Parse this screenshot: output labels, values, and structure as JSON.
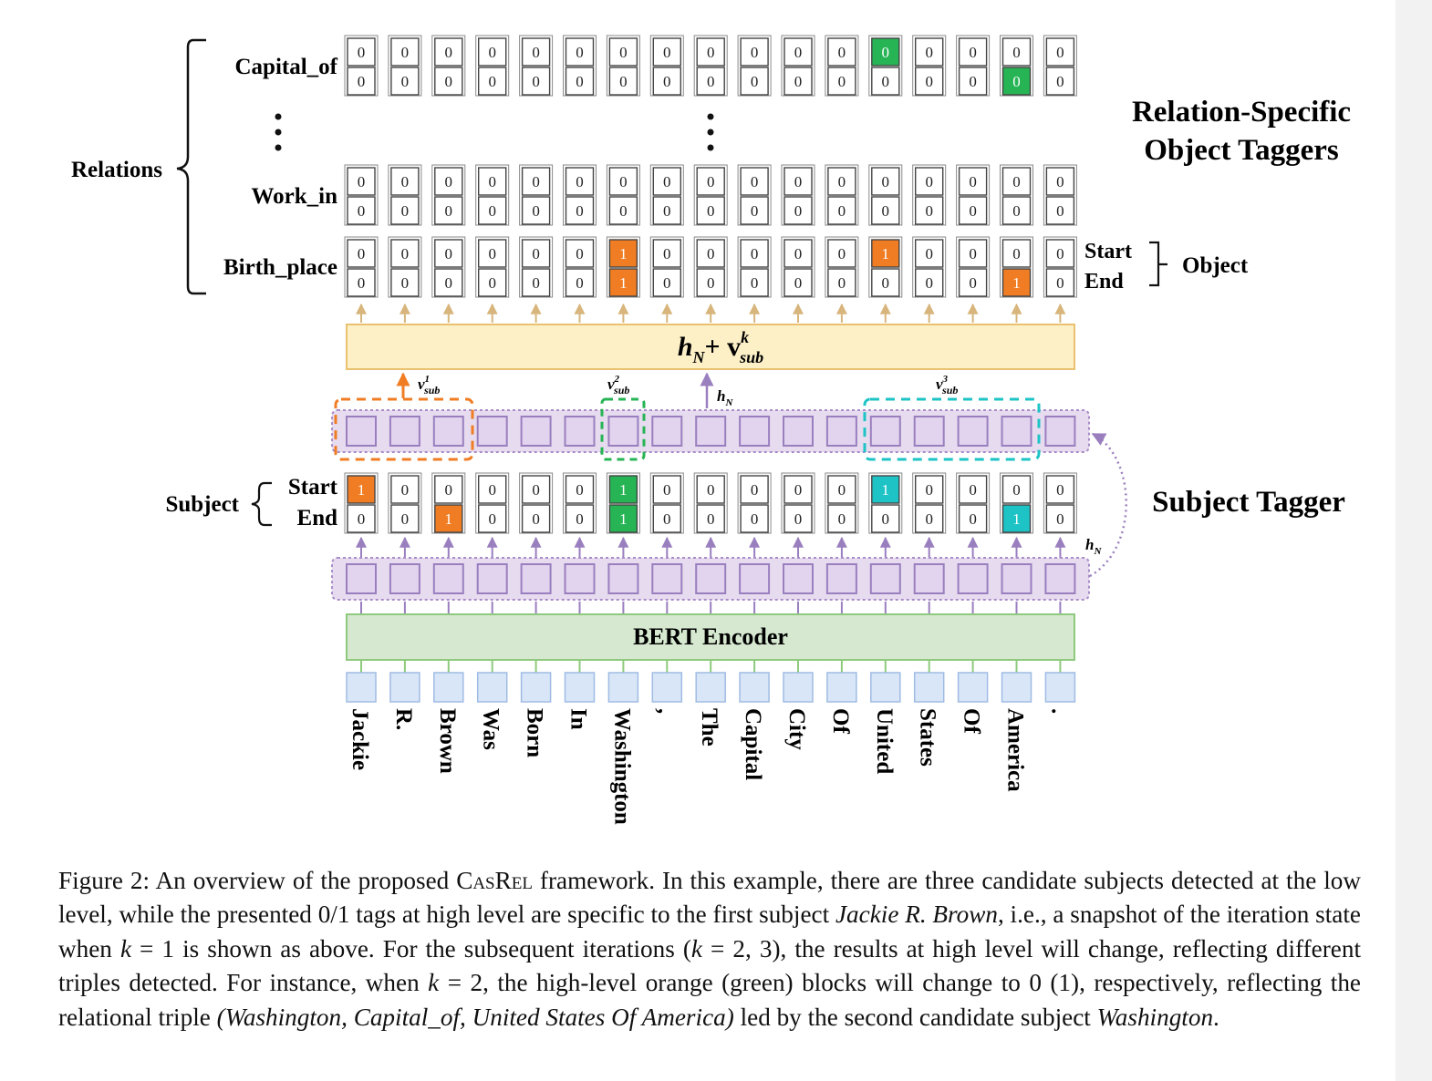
{
  "relations": {
    "group_label": "Relations",
    "rows": [
      {
        "name": "Capital_of",
        "start": [
          0,
          0,
          0,
          0,
          0,
          0,
          0,
          0,
          0,
          0,
          0,
          0,
          0,
          0,
          0,
          0,
          0
        ],
        "end": [
          0,
          0,
          0,
          0,
          0,
          0,
          0,
          0,
          0,
          0,
          0,
          0,
          0,
          0,
          0,
          0,
          0
        ],
        "start_color": [
          null,
          null,
          null,
          null,
          null,
          null,
          null,
          null,
          null,
          null,
          null,
          null,
          "green",
          null,
          null,
          null,
          null
        ],
        "end_color": [
          null,
          null,
          null,
          null,
          null,
          null,
          null,
          null,
          null,
          null,
          null,
          null,
          null,
          null,
          null,
          "green",
          null
        ]
      },
      {
        "name": "Work_in",
        "start": [
          0,
          0,
          0,
          0,
          0,
          0,
          0,
          0,
          0,
          0,
          0,
          0,
          0,
          0,
          0,
          0,
          0
        ],
        "end": [
          0,
          0,
          0,
          0,
          0,
          0,
          0,
          0,
          0,
          0,
          0,
          0,
          0,
          0,
          0,
          0,
          0
        ],
        "start_color": [],
        "end_color": []
      },
      {
        "name": "Birth_place",
        "start": [
          0,
          0,
          0,
          0,
          0,
          0,
          1,
          0,
          0,
          0,
          0,
          0,
          1,
          0,
          0,
          0,
          0
        ],
        "end": [
          0,
          0,
          0,
          0,
          0,
          0,
          1,
          0,
          0,
          0,
          0,
          0,
          0,
          0,
          0,
          1,
          0
        ],
        "start_color": [
          null,
          null,
          null,
          null,
          null,
          null,
          "orange",
          null,
          null,
          null,
          null,
          null,
          "orange",
          null,
          null,
          null,
          null
        ],
        "end_color": [
          null,
          null,
          null,
          null,
          null,
          null,
          "orange",
          null,
          null,
          null,
          null,
          null,
          null,
          null,
          null,
          "orange",
          null
        ]
      }
    ],
    "object_start_label": "Start",
    "object_end_label": "End",
    "object_label": "Object"
  },
  "object_tagger_title": [
    "Relation-Specific",
    "Object Taggers"
  ],
  "fusion_layer": {
    "label_main": "h",
    "label_sub_N": "N",
    "label_plus": "+ v",
    "label_sup": "k",
    "label_sub": "sub"
  },
  "subject_vectors": [
    {
      "v": "v",
      "sup": "1",
      "sub": "sub"
    },
    {
      "v": "v",
      "sup": "2",
      "sub": "sub"
    },
    {
      "v": "v",
      "sup": "3",
      "sub": "sub"
    }
  ],
  "hN_label": {
    "h": "h",
    "sub": "N"
  },
  "subject": {
    "group_label": "Subject",
    "start_label": "Start",
    "end_label": "End",
    "start": [
      1,
      0,
      0,
      0,
      0,
      0,
      1,
      0,
      0,
      0,
      0,
      0,
      1,
      0,
      0,
      0,
      0
    ],
    "end": [
      0,
      0,
      1,
      0,
      0,
      0,
      1,
      0,
      0,
      0,
      0,
      0,
      0,
      0,
      0,
      1,
      0
    ],
    "start_color": [
      "orange",
      null,
      null,
      null,
      null,
      null,
      "green",
      null,
      null,
      null,
      null,
      null,
      "cyan",
      null,
      null,
      null,
      null
    ],
    "end_color": [
      null,
      null,
      "orange",
      null,
      null,
      null,
      "green",
      null,
      null,
      null,
      null,
      null,
      null,
      null,
      null,
      "cyan",
      null
    ]
  },
  "subject_tagger_title": "Subject Tagger",
  "encoder_label": "BERT Encoder",
  "tokens": [
    "Jackie",
    "R.",
    "Brown",
    "Was",
    "Born",
    "In",
    "Washington",
    ",",
    "The",
    "Capital",
    "City",
    "Of",
    "United",
    "States",
    "Of",
    "America",
    "."
  ],
  "colors": {
    "orange": "#f07d24",
    "green": "#27b455",
    "cyan": "#1ec3c6",
    "cell_border": "#444444",
    "fusion_fill": "#fdf0c7",
    "fusion_border": "#e9c16f",
    "purple_fill": "#e7dcef",
    "purple_border": "#a98cc8",
    "bert_fill": "#d6e9d0",
    "bert_border": "#8ec97e",
    "token_fill": "#d9e6f8",
    "token_border": "#9fbbe3",
    "arrow_tan": "#d7b57c",
    "arrow_purple": "#9a7fbf",
    "arrow_green": "#8ecb7c"
  },
  "caption": {
    "p1": "Figure 2: An overview of the proposed ",
    "casrel": "CasRel",
    "p2": " framework. In this example, there are three candidate subjects detected at the low level, while the presented 0/1 tags at high level are specific to the first subject ",
    "subj1": "Jackie R. Brown",
    "p3": ", i.e., a snapshot of the iteration state when ",
    "k1": "k",
    "p4": " = 1 is shown as above. For the subsequent iterations (",
    "k2": "k",
    "p5": " = 2, 3), the results at high level will change, reflecting different triples detected. For instance, when ",
    "k3": "k",
    "p6": " = 2, the high-level orange (green) blocks will change to 0 (1), respectively, reflecting the relational triple ",
    "triple": "(Washington, Capital_of, United States Of America)",
    "p7": " led by the second candidate subject ",
    "subj2": "Washington",
    "p8": "."
  }
}
